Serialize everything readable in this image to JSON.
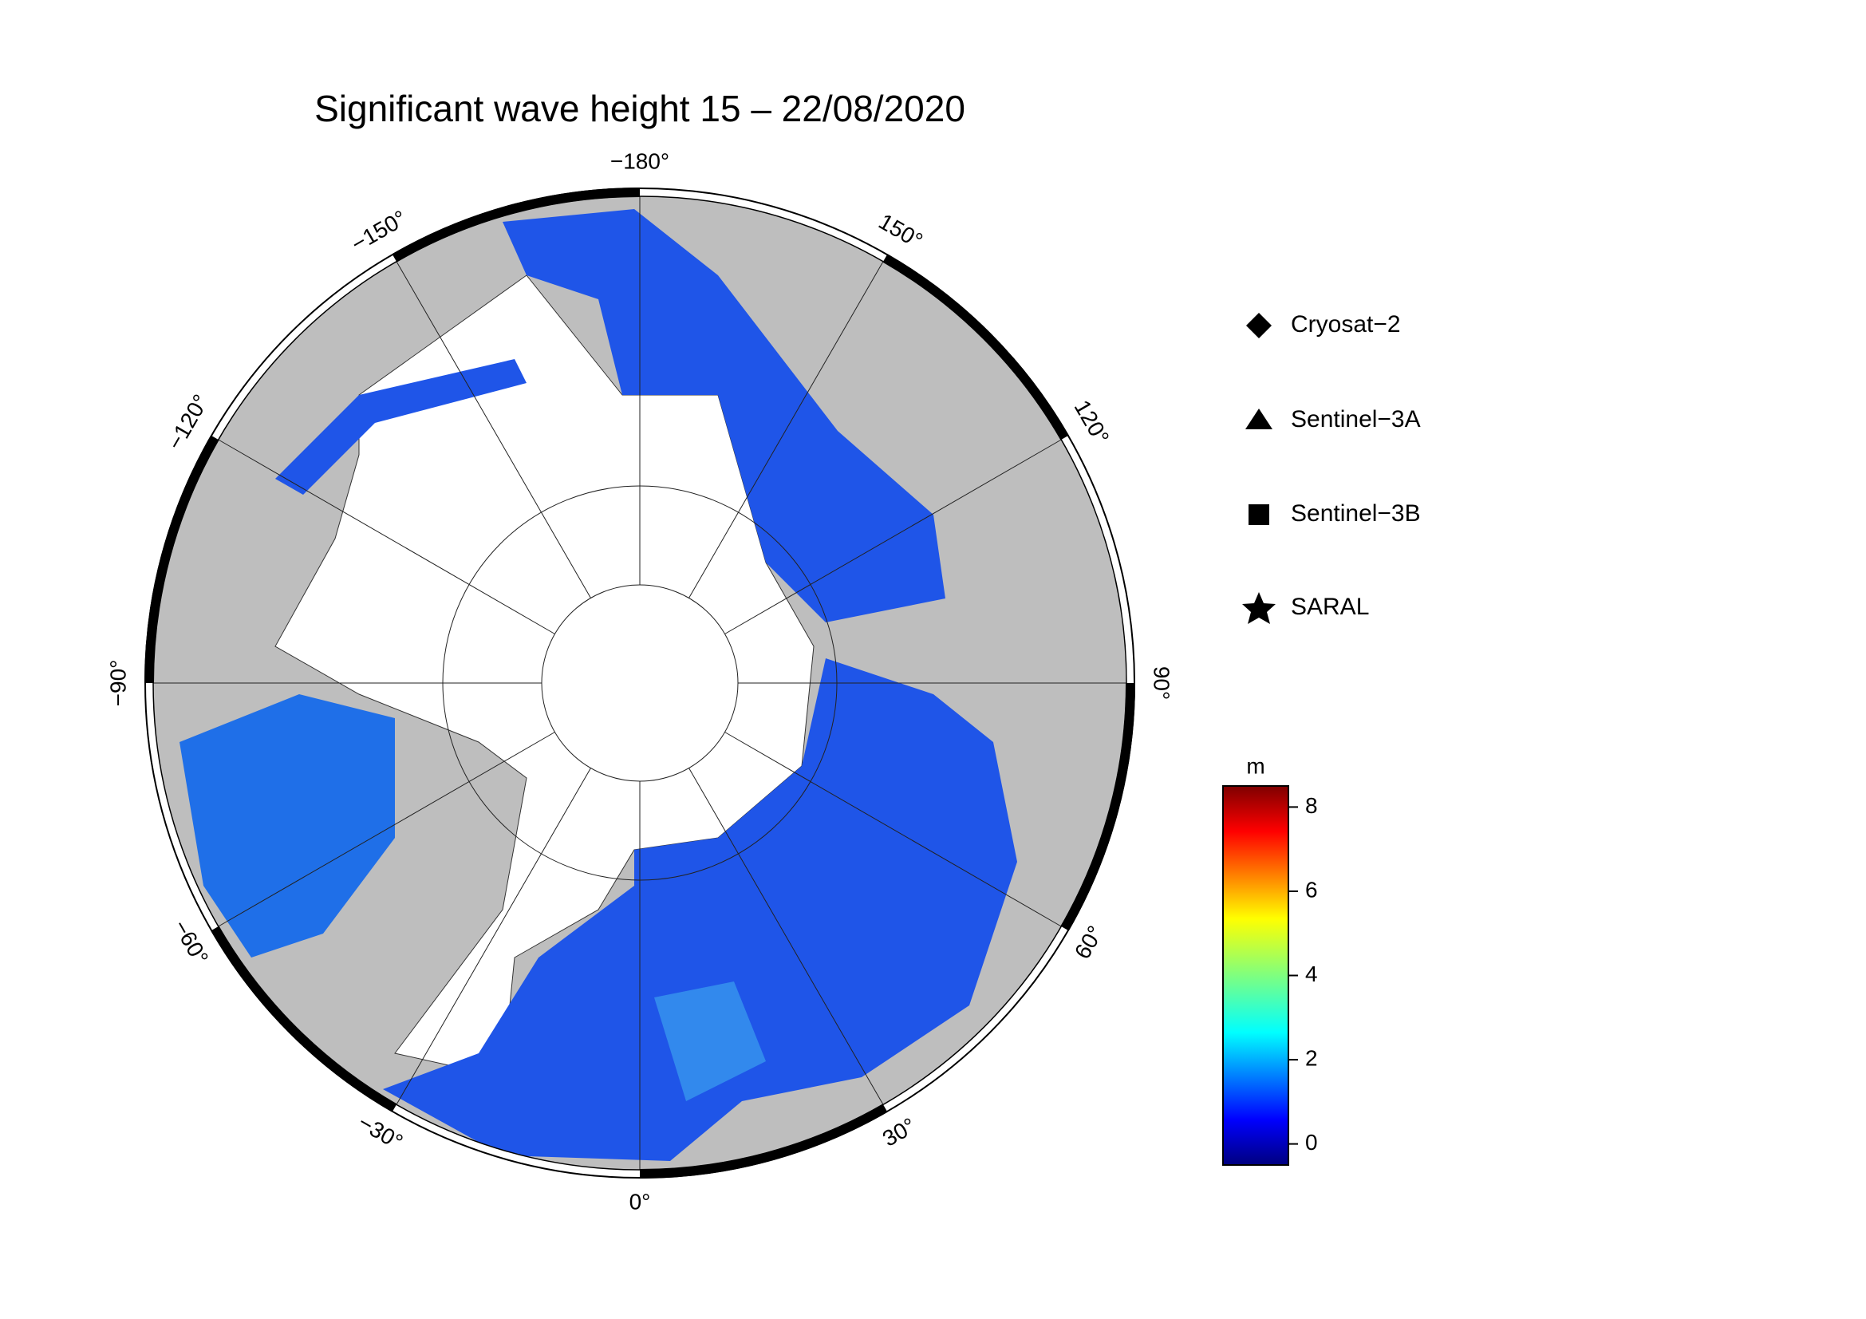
{
  "title": "Significant wave height 15 – 22/08/2020",
  "map": {
    "lon_ticks": [
      {
        "value": -180,
        "label": "−180°"
      },
      {
        "value": 150,
        "label": "150°"
      },
      {
        "value": 120,
        "label": "120°"
      },
      {
        "value": 90,
        "label": "90°"
      },
      {
        "value": 60,
        "label": "60°"
      },
      {
        "value": 30,
        "label": "30°"
      },
      {
        "value": 0,
        "label": "0°"
      },
      {
        "value": -30,
        "label": "−30°"
      },
      {
        "value": -60,
        "label": "−60°"
      },
      {
        "value": -90,
        "label": "−90°"
      },
      {
        "value": -120,
        "label": "−120°"
      },
      {
        "value": -150,
        "label": "−150°"
      }
    ]
  },
  "legend": [
    "Cryosat−2",
    "Sentinel−3A",
    "Sentinel−3B",
    "SARAL"
  ],
  "colorbar": {
    "unit": "m",
    "lim": [
      -0.5,
      8.5
    ],
    "ticks": [
      0,
      2,
      4,
      6,
      8
    ]
  }
}
